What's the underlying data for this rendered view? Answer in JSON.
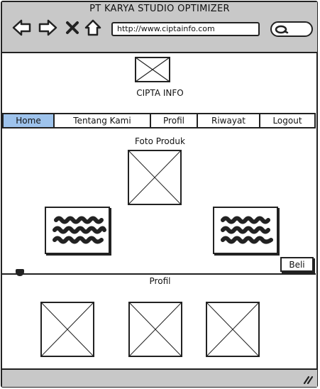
{
  "window": {
    "title": "PT KARYA STUDIO OPTIMIZER"
  },
  "browser": {
    "url": "http://www.ciptainfo.com",
    "icons": [
      "back-arrow-icon",
      "forward-arrow-icon",
      "close-icon",
      "home-icon",
      "search-icon"
    ]
  },
  "header": {
    "logo_icon": "image-placeholder-icon",
    "app_name": "CIPTA INFO"
  },
  "menu": {
    "items": [
      {
        "label": "Home",
        "active": true
      },
      {
        "label": "Tentang Kami",
        "active": false
      },
      {
        "label": "Profil",
        "active": false
      },
      {
        "label": "Riwayat",
        "active": false
      },
      {
        "label": "Logout",
        "active": false
      }
    ]
  },
  "products": {
    "section_title": "Foto Produk",
    "buy_label": "Beli"
  },
  "profile": {
    "section_title": "Profil"
  },
  "colors": {
    "chrome": "#c8c8c8",
    "active_tab": "#9ec3ec",
    "stroke": "#222222"
  }
}
